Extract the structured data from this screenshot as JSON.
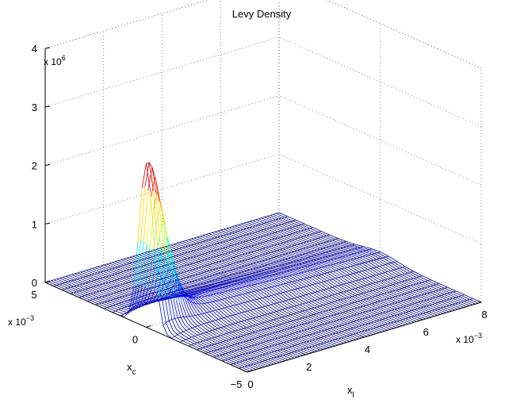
{
  "chart_data": {
    "type": "surface",
    "title": "Levy Density",
    "xlabel_main": "x",
    "xlabel_sub": "l",
    "ylabel_main": "x",
    "ylabel_sub": "c",
    "zlabel": "",
    "x_range": [
      0,
      0.008
    ],
    "y_range": [
      -0.005,
      0.005
    ],
    "z_range": [
      0,
      4000000
    ],
    "x_ticks": [
      "0",
      "2",
      "4",
      "6",
      "8"
    ],
    "y_ticks": [
      "−5",
      "0",
      "5"
    ],
    "z_ticks": [
      "0",
      "1",
      "2",
      "3",
      "4"
    ],
    "x_multiplier": "x 10",
    "x_multiplier_exp": "−3",
    "y_multiplier": "x 10",
    "y_multiplier_exp": "−3",
    "z_multiplier": "x 10",
    "z_multiplier_exp": "6",
    "grid": true,
    "colormap": "jet",
    "peak": {
      "x": 0.0,
      "y": 0.0,
      "z": 2800000
    }
  }
}
